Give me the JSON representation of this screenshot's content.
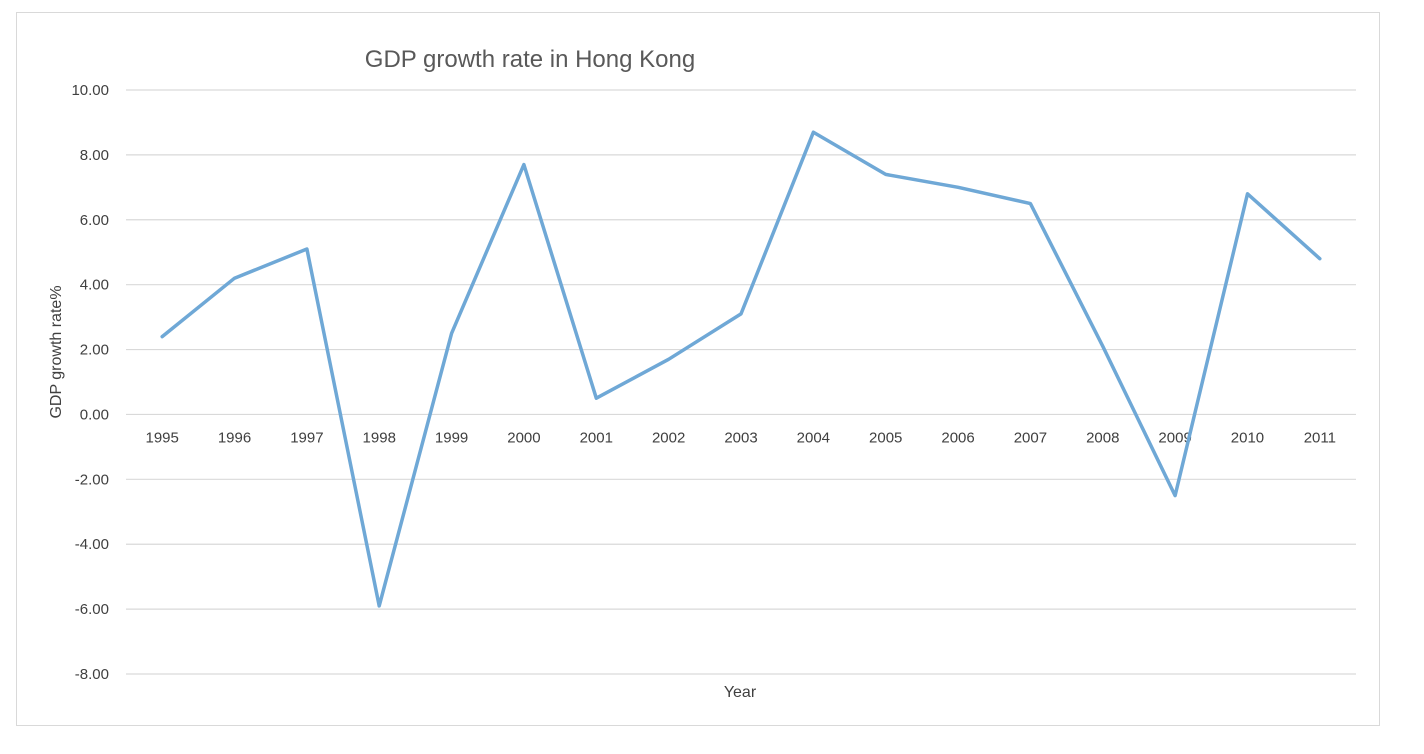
{
  "chart_data": {
    "type": "line",
    "title": "GDP growth rate in Hong Kong",
    "xlabel": "Year",
    "ylabel": "GDP growth rate%",
    "categories": [
      "1995",
      "1996",
      "1997",
      "1998",
      "1999",
      "2000",
      "2001",
      "2002",
      "2003",
      "2004",
      "2005",
      "2006",
      "2007",
      "2008",
      "2009",
      "2010",
      "2011"
    ],
    "series": [
      {
        "values": [
          2.4,
          4.2,
          5.1,
          -5.9,
          2.5,
          7.7,
          0.5,
          1.7,
          3.1,
          8.7,
          7.4,
          7.0,
          6.5,
          2.1,
          -2.5,
          6.8,
          4.8
        ],
        "color": "#6fa8d6"
      }
    ],
    "ylim": [
      -8,
      10
    ],
    "yticks": [
      "-8.00",
      "-6.00",
      "-4.00",
      "-2.00",
      "0.00",
      "2.00",
      "4.00",
      "6.00",
      "8.00",
      "10.00"
    ],
    "grid": true,
    "legend": "none"
  }
}
